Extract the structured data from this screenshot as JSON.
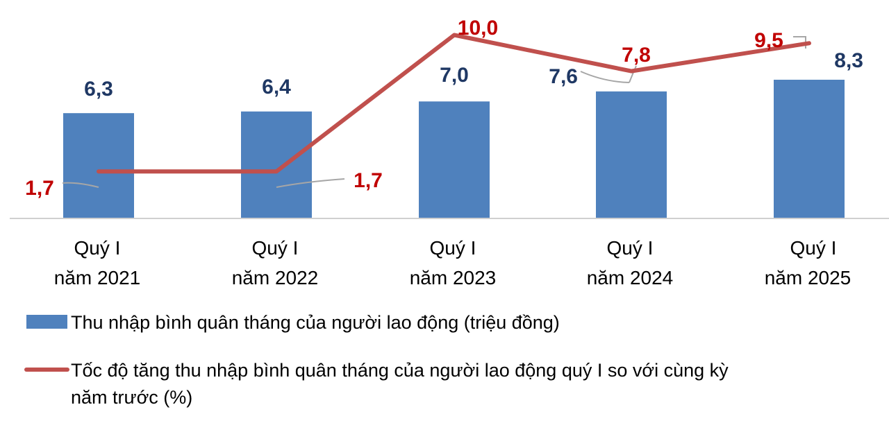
{
  "chart_data": {
    "type": "bar",
    "categories": [
      [
        "Quý I",
        "năm 2021"
      ],
      [
        "Quý I",
        "năm 2022"
      ],
      [
        "Quý I",
        "năm 2023"
      ],
      [
        "Quý I",
        "năm 2024"
      ],
      [
        "Quý I",
        "năm 2025"
      ]
    ],
    "series": [
      {
        "name": "Thu nhập bình quân tháng của người lao động (triệu đồng)",
        "type": "bar",
        "color": "#4f81bd",
        "values": [
          6.3,
          6.4,
          7.0,
          7.6,
          8.3
        ],
        "labels": [
          "6,3",
          "6,4",
          "7,0",
          "7,6",
          "8,3"
        ]
      },
      {
        "name": "Tốc độ tăng thu nhập bình quân tháng của người lao động quý I so với cùng kỳ năm trước (%)",
        "name_lines": [
          "Tốc độ tăng thu nhập bình quân tháng của người lao động quý I so với cùng kỳ",
          "năm trước (%)"
        ],
        "type": "line",
        "color": "#c0504d",
        "values": [
          1.7,
          1.7,
          10.0,
          7.8,
          9.5
        ],
        "labels": [
          "1,7",
          "1,7",
          "10,0",
          "7,8",
          "9,5"
        ]
      }
    ],
    "legend_position": "bottom",
    "grid": false,
    "title": "",
    "xlabel": "",
    "ylabel": ""
  }
}
